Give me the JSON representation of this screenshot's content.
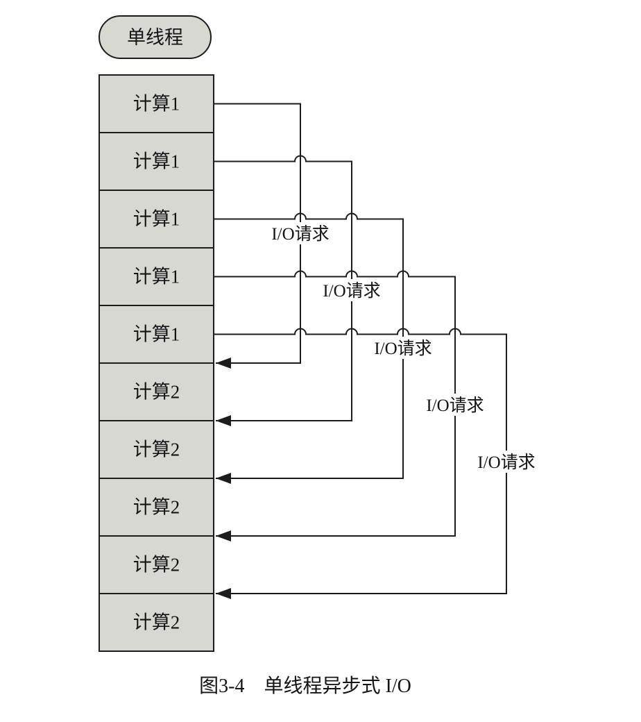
{
  "figure": {
    "thread_label": "单线程",
    "boxes": [
      {
        "label": "计算1"
      },
      {
        "label": "计算1"
      },
      {
        "label": "计算1"
      },
      {
        "label": "计算1"
      },
      {
        "label": "计算1"
      },
      {
        "label": "计算2"
      },
      {
        "label": "计算2"
      },
      {
        "label": "计算2"
      },
      {
        "label": "计算2"
      },
      {
        "label": "计算2"
      }
    ],
    "io_requests": [
      {
        "label": "I/O请求"
      },
      {
        "label": "I/O请求"
      },
      {
        "label": "I/O请求"
      },
      {
        "label": "I/O请求"
      },
      {
        "label": "I/O请求"
      }
    ],
    "caption": "图3-4　单线程异步式 I/O"
  },
  "colors": {
    "box_fill": "#d8d8d3",
    "line": "#1c1c1c",
    "background": "#ffffff"
  }
}
